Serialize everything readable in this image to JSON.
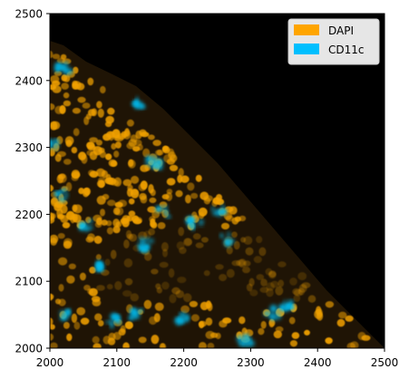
{
  "image": {
    "description": "Fluorescence microscopy image with DAPI (orange) nuclei and CD11c (cyan) staining shown on a pixel-coordinate grid",
    "colors": {
      "background": "#000000",
      "dapi": "#f0a000",
      "cd11c": "#00bcf0",
      "tissue_dark": "#2a1c06"
    }
  },
  "axes": {
    "x_ticks": [
      "2000",
      "2100",
      "2200",
      "2300",
      "2400",
      "2500"
    ],
    "y_ticks": [
      "2000",
      "2100",
      "2200",
      "2300",
      "2400",
      "2500"
    ],
    "xlim": [
      2000,
      2500
    ],
    "ylim": [
      2000,
      2500
    ]
  },
  "legend": {
    "placement": "top-right",
    "items": [
      {
        "label": "DAPI",
        "color": "#ffa500"
      },
      {
        "label": "CD11c",
        "color": "#00bfff"
      }
    ]
  }
}
